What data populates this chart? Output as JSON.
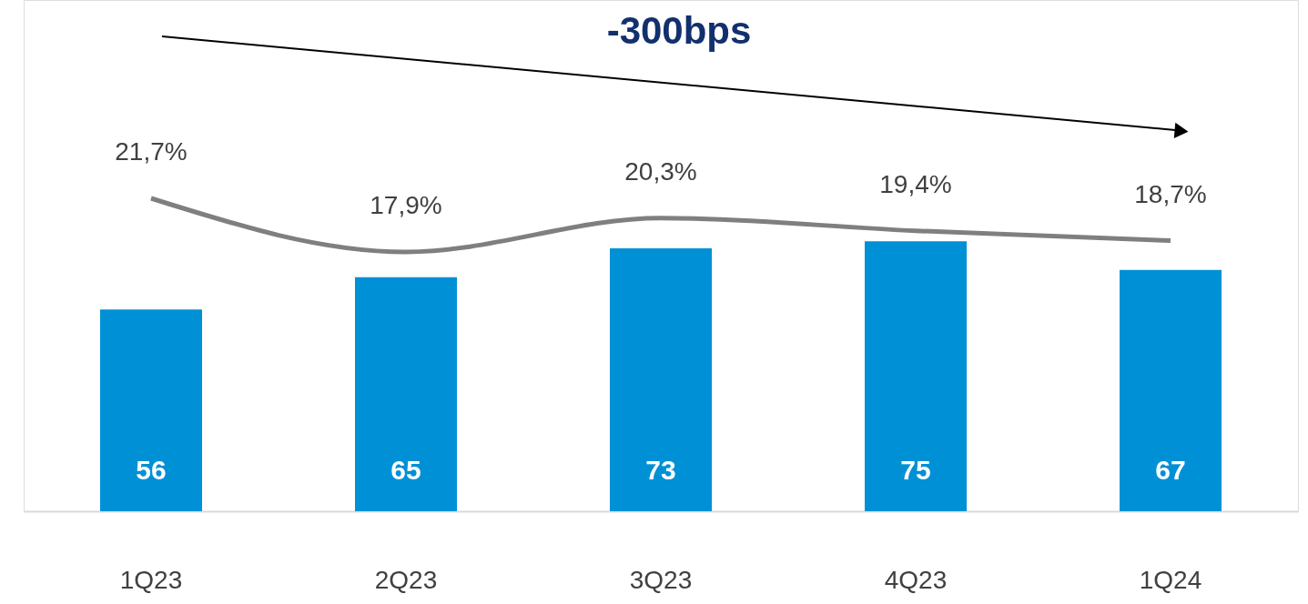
{
  "chart_data": {
    "type": "bar",
    "annotations": [
      "-300bps"
    ],
    "categories": [
      "1Q23",
      "2Q23",
      "3Q23",
      "4Q23",
      "1Q24"
    ],
    "series": [
      {
        "color": "#0090d6",
        "values": [
          56,
          65,
          73,
          75,
          67
        ]
      },
      {
        "type": "line",
        "axis": "y2",
        "color": "#7f7f7f",
        "values": [
          21.7,
          17.9,
          20.3,
          19.4,
          18.7
        ],
        "value_labels": [
          "21,7%",
          "17,9%",
          "20,3%",
          "19,4%",
          "18,7%"
        ]
      }
    ],
    "data_labels": true,
    "ylim": [
      0,
      142
    ],
    "tick_labels": "x",
    "grid": false,
    "marker": "none",
    "line_style": "solid"
  }
}
